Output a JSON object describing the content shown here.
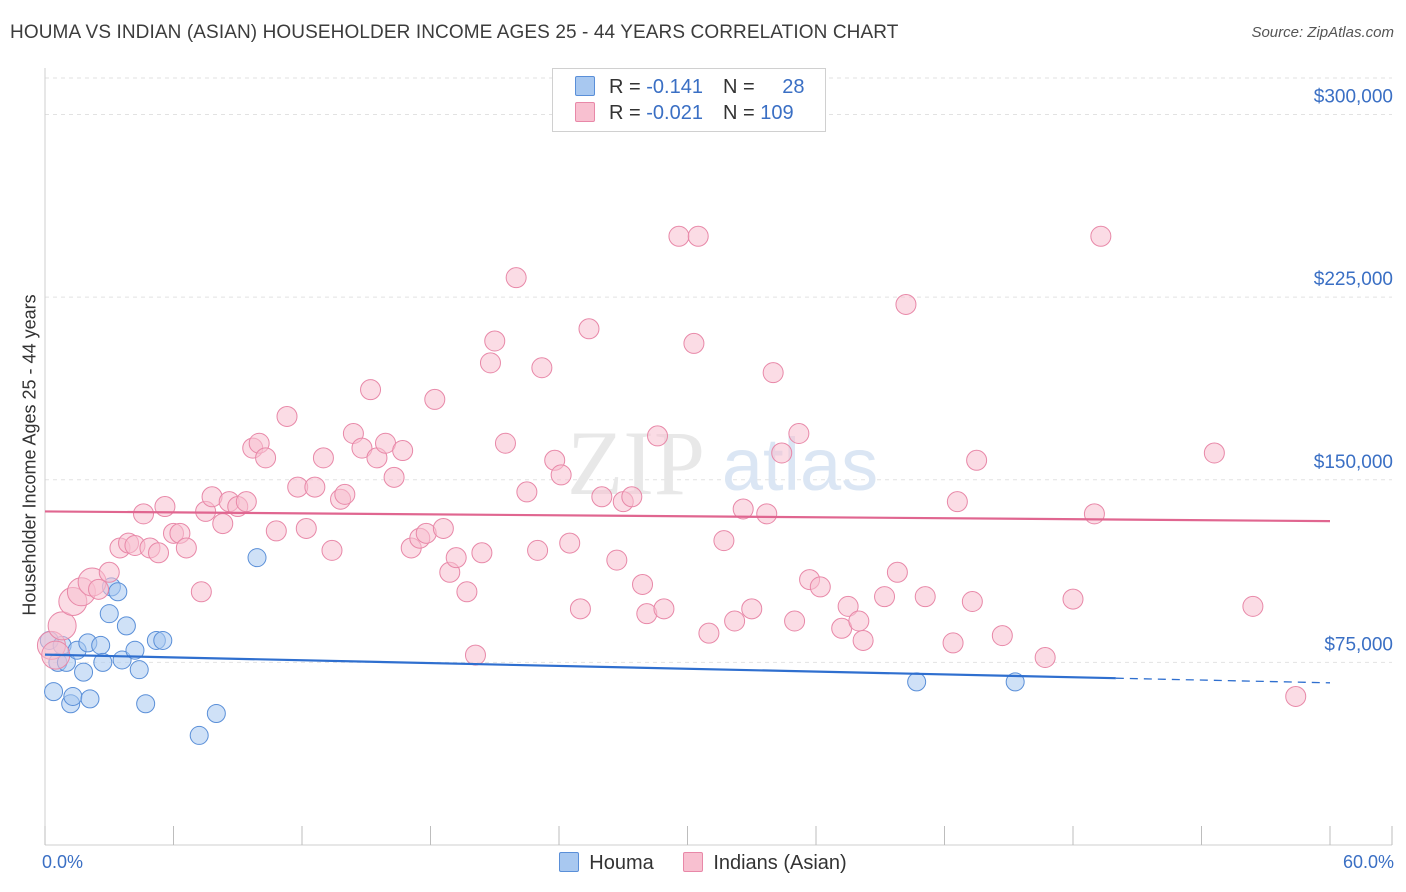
{
  "title": "HOUMA VS INDIAN (ASIAN) HOUSEHOLDER INCOME AGES 25 - 44 YEARS CORRELATION CHART",
  "source": "Source: ZipAtlas.com",
  "watermark": "ZIPatlas",
  "legend": {
    "rows": [
      {
        "r_label": "R = ",
        "r_value": "-0.141",
        "n_label": "N = ",
        "n_value": "28",
        "color": "#a8c8f0",
        "border": "#5a8fd8"
      },
      {
        "r_label": "R = ",
        "r_value": "-0.021",
        "n_label": "N = ",
        "n_value": "109",
        "color": "#f8c0d0",
        "border": "#e888a8"
      }
    ]
  },
  "bottom_legend": [
    {
      "label": "Houma",
      "color": "#a8c8f0",
      "border": "#5a8fd8"
    },
    {
      "label": "Indians (Asian)",
      "color": "#f8c0d0",
      "border": "#e888a8"
    }
  ],
  "chart_data": {
    "type": "scatter",
    "title": "HOUMA VS INDIAN (ASIAN) HOUSEHOLDER INCOME AGES 25 - 44 YEARS CORRELATION CHART",
    "xlabel": "",
    "ylabel": "Householder Income Ages 25 - 44 years",
    "xlim": [
      0,
      60
    ],
    "ylim": [
      0,
      315000
    ],
    "x_tick_labels": {
      "left": "0.0%",
      "right": "60.0%"
    },
    "y_ticks": [
      {
        "value": 75000,
        "label": "$75,000"
      },
      {
        "value": 150000,
        "label": "$150,000"
      },
      {
        "value": 225000,
        "label": "$225,000"
      },
      {
        "value": 300000,
        "label": "$300,000"
      }
    ],
    "grid": true,
    "series": [
      {
        "name": "Houma",
        "color": "#a8c8f0",
        "stroke": "#5a8fd8",
        "line_color": "#2f6fcf",
        "trend": {
          "x0": 0,
          "y0": 78200,
          "x1": 50,
          "y1": 68500,
          "x_dash_end": 60,
          "y_dash_end": 66600
        },
        "points": [
          [
            0.2,
            84000
          ],
          [
            0.4,
            63000
          ],
          [
            0.6,
            75000
          ],
          [
            0.8,
            82000
          ],
          [
            1.0,
            75000
          ],
          [
            1.2,
            58000
          ],
          [
            1.3,
            61000
          ],
          [
            1.5,
            80000
          ],
          [
            1.8,
            71000
          ],
          [
            2.0,
            83000
          ],
          [
            2.1,
            60000
          ],
          [
            2.6,
            82000
          ],
          [
            2.7,
            75000
          ],
          [
            3.0,
            95000
          ],
          [
            3.1,
            106000
          ],
          [
            3.4,
            104000
          ],
          [
            3.6,
            76000
          ],
          [
            3.8,
            90000
          ],
          [
            4.2,
            80000
          ],
          [
            4.4,
            72000
          ],
          [
            4.7,
            58000
          ],
          [
            5.2,
            84000
          ],
          [
            5.5,
            84000
          ],
          [
            7.2,
            45000
          ],
          [
            8.0,
            54000
          ],
          [
            9.9,
            118000
          ],
          [
            40.7,
            67000
          ],
          [
            45.3,
            67000
          ]
        ]
      },
      {
        "name": "Indians (Asian)",
        "color": "#f8c0d0",
        "stroke": "#e888a8",
        "line_color": "#e06690",
        "trend": {
          "x0": 0,
          "y0": 137000,
          "x1": 60,
          "y1": 133000
        },
        "points": [
          [
            0.3,
            82000
          ],
          [
            0.5,
            78000
          ],
          [
            0.8,
            90000
          ],
          [
            1.3,
            100000
          ],
          [
            1.7,
            104000
          ],
          [
            2.2,
            108000
          ],
          [
            2.5,
            105000
          ],
          [
            3.0,
            112000
          ],
          [
            3.5,
            122000
          ],
          [
            3.9,
            124000
          ],
          [
            4.2,
            123000
          ],
          [
            4.6,
            136000
          ],
          [
            4.9,
            122000
          ],
          [
            5.3,
            120000
          ],
          [
            5.6,
            139000
          ],
          [
            6.0,
            128000
          ],
          [
            6.3,
            128000
          ],
          [
            6.6,
            122000
          ],
          [
            7.3,
            104000
          ],
          [
            7.5,
            137000
          ],
          [
            7.8,
            143000
          ],
          [
            8.3,
            132000
          ],
          [
            8.6,
            141000
          ],
          [
            9.0,
            139000
          ],
          [
            9.4,
            141000
          ],
          [
            9.7,
            163000
          ],
          [
            10.0,
            165000
          ],
          [
            10.3,
            159000
          ],
          [
            10.8,
            129000
          ],
          [
            11.3,
            176000
          ],
          [
            11.8,
            147000
          ],
          [
            12.2,
            130000
          ],
          [
            12.6,
            147000
          ],
          [
            13.0,
            159000
          ],
          [
            13.4,
            121000
          ],
          [
            13.8,
            142000
          ],
          [
            14.0,
            144000
          ],
          [
            14.4,
            169000
          ],
          [
            14.8,
            163000
          ],
          [
            15.2,
            187000
          ],
          [
            15.5,
            159000
          ],
          [
            15.9,
            165000
          ],
          [
            16.3,
            151000
          ],
          [
            16.7,
            162000
          ],
          [
            17.1,
            122000
          ],
          [
            17.5,
            126000
          ],
          [
            17.8,
            128000
          ],
          [
            18.2,
            183000
          ],
          [
            18.6,
            130000
          ],
          [
            18.9,
            112000
          ],
          [
            19.2,
            118000
          ],
          [
            19.7,
            104000
          ],
          [
            20.1,
            78000
          ],
          [
            20.4,
            120000
          ],
          [
            20.8,
            198000
          ],
          [
            21.0,
            207000
          ],
          [
            21.5,
            165000
          ],
          [
            22.0,
            233000
          ],
          [
            22.5,
            145000
          ],
          [
            23.0,
            121000
          ],
          [
            23.2,
            196000
          ],
          [
            23.8,
            158000
          ],
          [
            24.1,
            152000
          ],
          [
            24.5,
            124000
          ],
          [
            25.0,
            97000
          ],
          [
            25.4,
            212000
          ],
          [
            26.0,
            143000
          ],
          [
            26.7,
            117000
          ],
          [
            27.0,
            141000
          ],
          [
            27.4,
            143000
          ],
          [
            27.9,
            107000
          ],
          [
            28.1,
            95000
          ],
          [
            28.6,
            168000
          ],
          [
            28.9,
            97000
          ],
          [
            29.6,
            250000
          ],
          [
            30.3,
            206000
          ],
          [
            30.5,
            250000
          ],
          [
            31.0,
            87000
          ],
          [
            31.7,
            125000
          ],
          [
            32.2,
            92000
          ],
          [
            32.6,
            138000
          ],
          [
            33.0,
            97000
          ],
          [
            33.7,
            136000
          ],
          [
            34.0,
            194000
          ],
          [
            34.4,
            161000
          ],
          [
            35.0,
            92000
          ],
          [
            35.2,
            169000
          ],
          [
            35.7,
            109000
          ],
          [
            36.2,
            106000
          ],
          [
            37.2,
            89000
          ],
          [
            37.5,
            98000
          ],
          [
            38.0,
            92000
          ],
          [
            38.2,
            84000
          ],
          [
            39.2,
            102000
          ],
          [
            39.8,
            112000
          ],
          [
            40.2,
            222000
          ],
          [
            41.1,
            102000
          ],
          [
            42.4,
            83000
          ],
          [
            42.6,
            141000
          ],
          [
            43.3,
            100000
          ],
          [
            43.5,
            158000
          ],
          [
            44.7,
            86000
          ],
          [
            46.7,
            77000
          ],
          [
            48.0,
            101000
          ],
          [
            49.0,
            136000
          ],
          [
            49.3,
            250000
          ],
          [
            54.6,
            161000
          ],
          [
            56.4,
            98000
          ],
          [
            58.4,
            61000
          ]
        ]
      }
    ]
  }
}
